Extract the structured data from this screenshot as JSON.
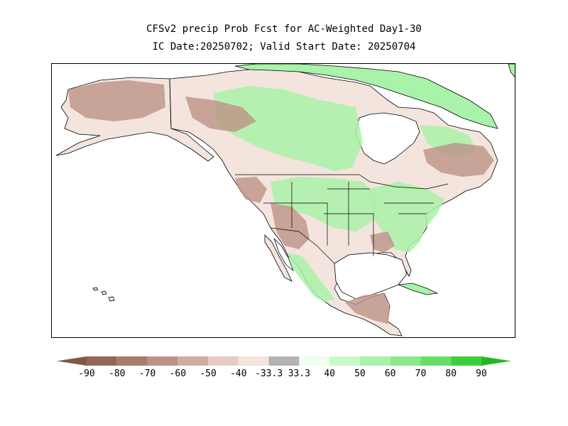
{
  "title": {
    "line1": "CFSv2 precip Prob Fcst for AC-Weighted Day1-30",
    "line2": "IC Date:20250702; Valid Start Date: 20250704"
  },
  "colorbar": {
    "bins": [
      {
        "color": "#7f5846"
      },
      {
        "color": "#946658"
      },
      {
        "color": "#a97b6e"
      },
      {
        "color": "#bd9286"
      },
      {
        "color": "#d0aca1"
      },
      {
        "color": "#e7ccc3"
      },
      {
        "color": "#f3e4de"
      },
      {
        "color": "#b3b3b3"
      },
      {
        "color": "#f0fff0"
      },
      {
        "color": "#c8fac8"
      },
      {
        "color": "#a9f2a9"
      },
      {
        "color": "#8ae88a"
      },
      {
        "color": "#68de68"
      },
      {
        "color": "#3ccf3c"
      },
      {
        "color": "#23b823"
      }
    ],
    "labels": [
      "-90",
      "-80",
      "-70",
      "-60",
      "-50",
      "-40",
      "-33.3",
      "33.3",
      "40",
      "50",
      "60",
      "70",
      "80",
      "90"
    ]
  },
  "map": {
    "ocean_color": "#ffffff",
    "outline_color": "#000000",
    "wet_color": "#a9f2a9",
    "dry_color": "#bd9286",
    "neutral_color": "#f3e4de"
  }
}
